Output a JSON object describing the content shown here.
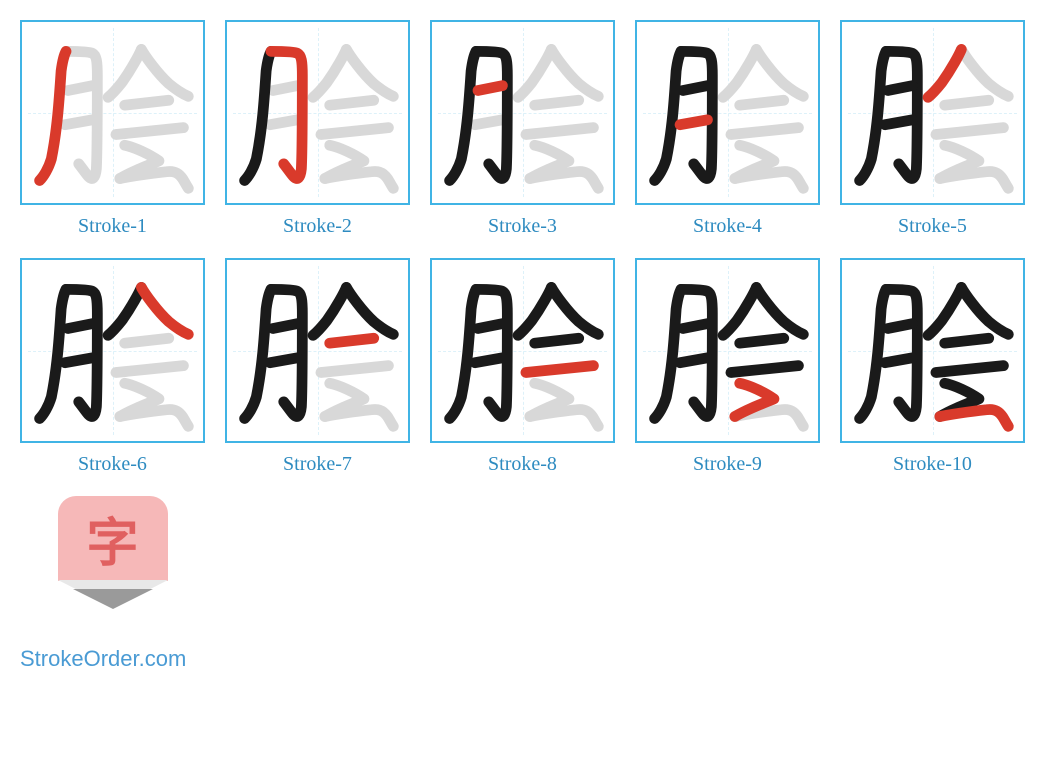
{
  "grid": {
    "columns": 5,
    "tile_size": 185,
    "gap": 20,
    "cells": [
      {
        "label": "Stroke-1"
      },
      {
        "label": "Stroke-2"
      },
      {
        "label": "Stroke-3"
      },
      {
        "label": "Stroke-4"
      },
      {
        "label": "Stroke-5"
      },
      {
        "label": "Stroke-6"
      },
      {
        "label": "Stroke-7"
      },
      {
        "label": "Stroke-8"
      },
      {
        "label": "Stroke-9"
      },
      {
        "label": "Stroke-10"
      }
    ]
  },
  "colors": {
    "border": "#40b4e5",
    "guide": "#bde4f4",
    "label": "#2e8bc0",
    "stroke_current": "#d93a2b",
    "stroke_done": "#1a1a1a",
    "stroke_future": "#d8d8d8",
    "logo_bg": "#f6b8b8",
    "logo_char": "#e06060",
    "logo_tip_outer": "#e8e8e8",
    "logo_tip_inner": "#9a9a9a",
    "watermark": "#4a9bd4",
    "background": "#ffffff"
  },
  "typography": {
    "label_fontsize": 20,
    "label_family": "Georgia, serif",
    "watermark_fontsize": 22,
    "watermark_family": "Arial, sans-serif",
    "logo_char_fontsize": 52
  },
  "character": {
    "name": "脍",
    "total_strokes": 10,
    "stroke_paths": [
      "M 45 30 C 45 30 42 35 40 50 C 38 80 36 110 30 140 C 27 150 22 158 18 162",
      "M 45 30 C 50 30 68 30 72 32 C 76 34 77 40 77 55 C 77 95 77 130 76 150 C 75 160 72 162 68 158 C 66 156 62 150 58 145",
      "M 47 70 L 72 65",
      "M 44 105 L 72 100",
      "M 122 28 C 120 33 112 48 102 62 C 98 67 93 73 88 77",
      "M 122 28 C 126 35 138 52 150 63 C 156 68 163 73 170 76",
      "M 105 85 L 150 80",
      "M 96 115 L 165 108",
      "M 105 126 C 115 128 130 135 140 142 C 125 148 112 153 100 160",
      "M 100 160 C 110 158 130 155 148 153 C 155 152 160 154 164 160 C 166 163 168 167 170 170"
    ]
  },
  "logo": {
    "char": "字"
  },
  "watermark": "StrokeOrder.com"
}
